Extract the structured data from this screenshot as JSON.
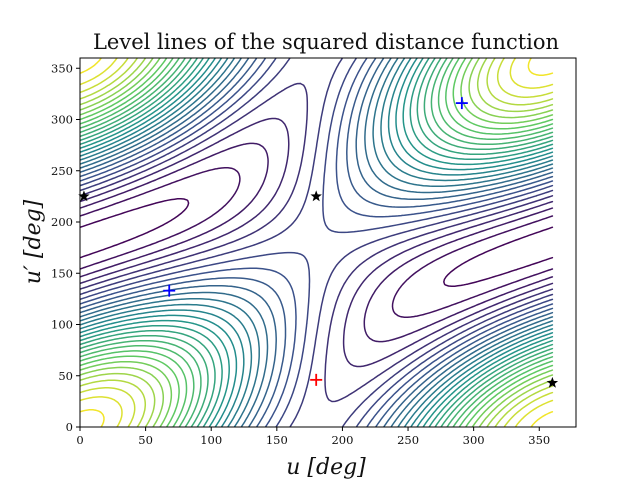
{
  "chart_data": {
    "type": "contour",
    "title": "Level lines of the squared distance function",
    "xlabel": "u [deg]",
    "ylabel": "u′ [deg]",
    "xlim": [
      0,
      378
    ],
    "ylim": [
      0,
      360
    ],
    "xticks": [
      0,
      50,
      100,
      150,
      200,
      250,
      300,
      350
    ],
    "yticks": [
      0,
      50,
      100,
      150,
      200,
      250,
      300,
      350
    ],
    "grid": false,
    "colormap": "viridis",
    "colormap_stops": [
      "#440154",
      "#3b528b",
      "#21918c",
      "#5ec962",
      "#fde725"
    ],
    "function_domain": [
      0,
      360
    ],
    "markers": [
      {
        "kind": "plus",
        "color": "#ff0000",
        "x": 180,
        "y": 46
      },
      {
        "kind": "plus",
        "color": "#0000ff",
        "x": 68,
        "y": 133
      },
      {
        "kind": "plus",
        "color": "#0000ff",
        "x": 291,
        "y": 316
      },
      {
        "kind": "star",
        "color": "#000000",
        "x": 3,
        "y": 225
      },
      {
        "kind": "star",
        "color": "#000000",
        "x": 180,
        "y": 225
      },
      {
        "kind": "star",
        "color": "#000000",
        "x": 360,
        "y": 43
      }
    ]
  }
}
